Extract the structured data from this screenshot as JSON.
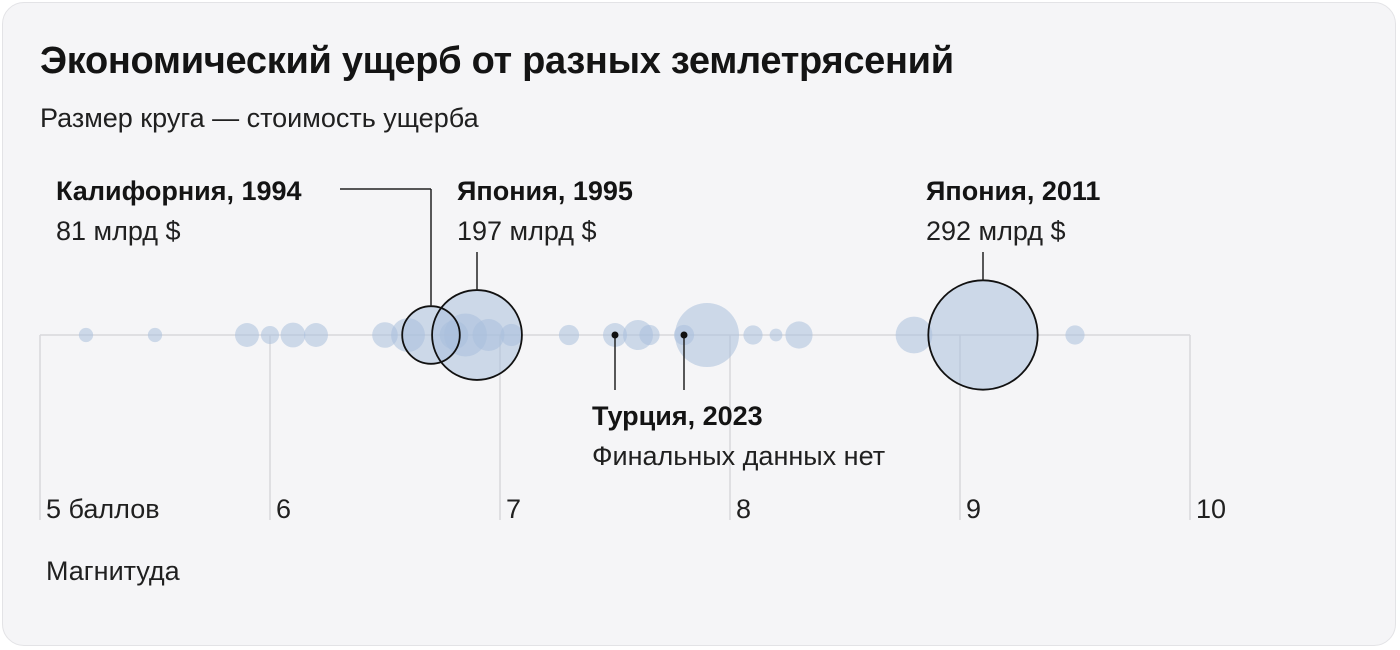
{
  "header": {
    "title": "Экономический ущерб от разных землетрясений",
    "subtitle": "Размер круга — стоимость ущерба"
  },
  "chart_data": {
    "type": "scatter",
    "title": "Экономический ущерб от разных землетрясений",
    "subtitle": "Размер круга — стоимость ущерба",
    "xlabel": "Магнитуда",
    "xlim": [
      5,
      10
    ],
    "xticks": [
      {
        "value": 5,
        "label": "5 баллов"
      },
      {
        "value": 6,
        "label": "6"
      },
      {
        "value": 7,
        "label": "7"
      },
      {
        "value": 8,
        "label": "8"
      },
      {
        "value": 9,
        "label": "9"
      },
      {
        "value": 10,
        "label": "10"
      }
    ],
    "size_encoding": "Размер круга — стоимость ущерба",
    "point_color": "#a9bfdc",
    "points": [
      {
        "magnitude": 5.2,
        "damage": 5
      },
      {
        "magnitude": 5.5,
        "damage": 5
      },
      {
        "magnitude": 5.9,
        "damage": 14
      },
      {
        "magnitude": 6.0,
        "damage": 8
      },
      {
        "magnitude": 6.1,
        "damage": 15
      },
      {
        "magnitude": 6.2,
        "damage": 14
      },
      {
        "magnitude": 6.5,
        "damage": 16
      },
      {
        "magnitude": 6.6,
        "damage": 28
      },
      {
        "magnitude": 6.7,
        "damage": 81
      },
      {
        "magnitude": 6.8,
        "damage": 20
      },
      {
        "magnitude": 6.85,
        "damage": 45
      },
      {
        "magnitude": 6.9,
        "damage": 197
      },
      {
        "magnitude": 6.95,
        "damage": 25
      },
      {
        "magnitude": 7.05,
        "damage": 12
      },
      {
        "magnitude": 7.3,
        "damage": 10
      },
      {
        "magnitude": 7.5,
        "damage": 14
      },
      {
        "magnitude": 7.6,
        "damage": 22
      },
      {
        "magnitude": 7.65,
        "damage": 10
      },
      {
        "magnitude": 7.8,
        "damage": 10
      },
      {
        "magnitude": 7.9,
        "damage": 100
      },
      {
        "magnitude": 8.1,
        "damage": 9
      },
      {
        "magnitude": 8.2,
        "damage": 4
      },
      {
        "magnitude": 8.3,
        "damage": 18
      },
      {
        "magnitude": 8.8,
        "damage": 33
      },
      {
        "magnitude": 9.1,
        "damage": 292
      },
      {
        "magnitude": 9.5,
        "damage": 9
      },
      {
        "magnitude": 7.5,
        "damage": 0,
        "no_data": true
      },
      {
        "magnitude": 7.8,
        "damage": 0,
        "no_data": true
      }
    ],
    "annotations": [
      {
        "name": "Калифорния, 1994",
        "value": "81 млрд $",
        "magnitude": 6.7,
        "damage": 81
      },
      {
        "name": "Япония, 1995",
        "value": "197 млрд $",
        "magnitude": 6.9,
        "damage": 197
      },
      {
        "name": "Япония, 2011",
        "value": "292 млрд $",
        "magnitude": 9.1,
        "damage": 292
      },
      {
        "name": "Турция, 2023",
        "value": "Финальных данных нет",
        "magnitude": [
          7.5,
          7.8
        ]
      }
    ]
  }
}
